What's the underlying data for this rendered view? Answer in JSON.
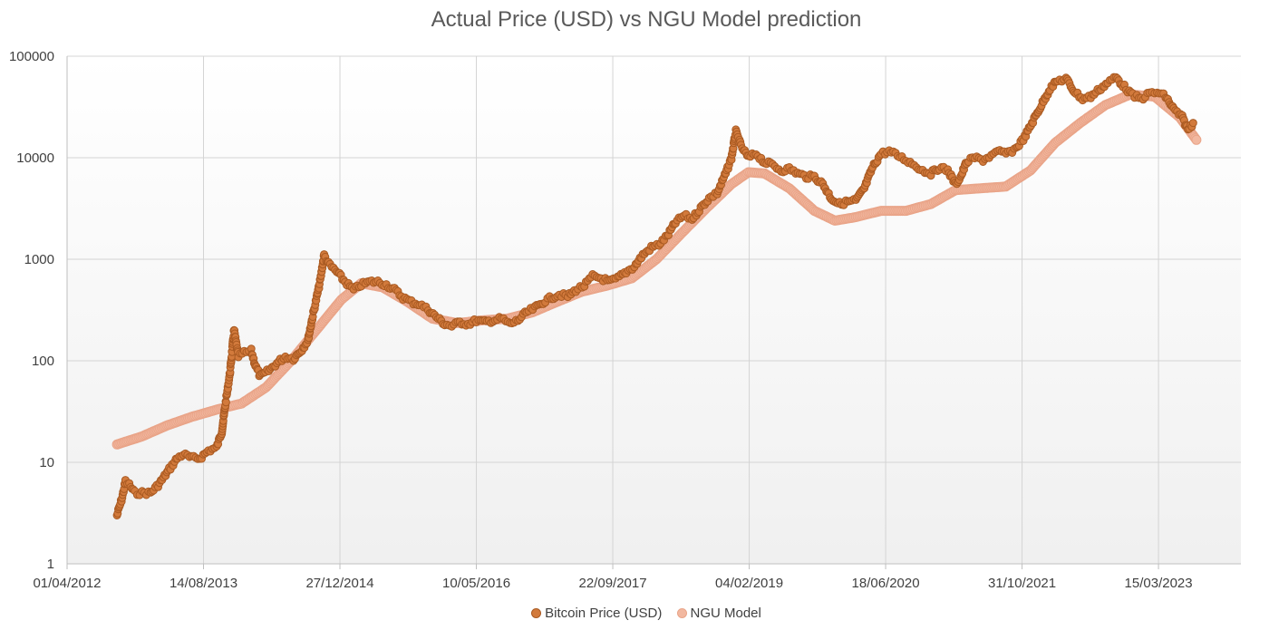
{
  "chart_data": {
    "type": "scatter",
    "title": "Actual Price (USD) vs NGU Model prediction",
    "xlabel": "",
    "ylabel": "",
    "yscale": "log",
    "ylim": [
      1,
      100000
    ],
    "y_ticks": [
      "1",
      "10",
      "100",
      "1000",
      "10000",
      "100000"
    ],
    "xlim": [
      "2012-04-01",
      "2024-01-11"
    ],
    "x_ticks": [
      "01/04/2012",
      "14/08/2013",
      "27/12/2014",
      "10/05/2016",
      "22/09/2017",
      "04/02/2019",
      "18/06/2020",
      "31/10/2021",
      "15/03/2023"
    ],
    "grid": true,
    "legend_position": "bottom",
    "series": [
      {
        "name": "Bitcoin Price (USD)",
        "color": "#d27a3c",
        "edge_color": "#a95a22",
        "points": [
          [
            "2012-10-01",
            3
          ],
          [
            "2012-10-20",
            4.5
          ],
          [
            "2012-11-01",
            6.5
          ],
          [
            "2012-11-15",
            6
          ],
          [
            "2012-12-05",
            5
          ],
          [
            "2013-01-01",
            5
          ],
          [
            "2013-02-01",
            5
          ],
          [
            "2013-03-01",
            6
          ],
          [
            "2013-03-20",
            7
          ],
          [
            "2013-04-10",
            8.5
          ],
          [
            "2013-05-10",
            11
          ],
          [
            "2013-06-01",
            12
          ],
          [
            "2013-07-01",
            11
          ],
          [
            "2013-08-01",
            11
          ],
          [
            "2013-09-01",
            13
          ],
          [
            "2013-10-01",
            14
          ],
          [
            "2013-10-20",
            20
          ],
          [
            "2013-11-01",
            35
          ],
          [
            "2013-11-20",
            80
          ],
          [
            "2013-12-04",
            200
          ],
          [
            "2013-12-20",
            110
          ],
          [
            "2014-01-10",
            120
          ],
          [
            "2014-02-05",
            125
          ],
          [
            "2014-02-20",
            90
          ],
          [
            "2014-03-10",
            70
          ],
          [
            "2014-04-10",
            80
          ],
          [
            "2014-05-10",
            95
          ],
          [
            "2014-06-10",
            110
          ],
          [
            "2014-07-10",
            105
          ],
          [
            "2014-08-10",
            130
          ],
          [
            "2014-09-01",
            160
          ],
          [
            "2014-09-15",
            250
          ],
          [
            "2014-10-01",
            400
          ],
          [
            "2014-10-15",
            600
          ],
          [
            "2014-10-30",
            1100
          ],
          [
            "2014-11-15",
            900
          ],
          [
            "2014-12-15",
            750
          ],
          [
            "2015-01-15",
            600
          ],
          [
            "2015-02-15",
            500
          ],
          [
            "2015-03-15",
            560
          ],
          [
            "2015-04-15",
            600
          ],
          [
            "2015-05-15",
            600
          ],
          [
            "2015-06-15",
            560
          ],
          [
            "2015-07-15",
            500
          ],
          [
            "2015-08-15",
            420
          ],
          [
            "2015-09-15",
            380
          ],
          [
            "2015-10-15",
            360
          ],
          [
            "2015-11-15",
            320
          ],
          [
            "2015-12-15",
            270
          ],
          [
            "2016-01-15",
            230
          ],
          [
            "2016-02-10",
            220
          ],
          [
            "2016-03-10",
            240
          ],
          [
            "2016-04-10",
            230
          ],
          [
            "2016-05-10",
            250
          ],
          [
            "2016-06-10",
            240
          ],
          [
            "2016-07-10",
            250
          ],
          [
            "2016-08-10",
            260
          ],
          [
            "2016-09-10",
            230
          ],
          [
            "2016-10-10",
            250
          ],
          [
            "2016-11-10",
            300
          ],
          [
            "2016-12-10",
            330
          ],
          [
            "2017-01-10",
            380
          ],
          [
            "2017-02-10",
            420
          ],
          [
            "2017-03-10",
            450
          ],
          [
            "2017-04-10",
            430
          ],
          [
            "2017-05-10",
            500
          ],
          [
            "2017-06-10",
            550
          ],
          [
            "2017-07-10",
            680
          ],
          [
            "2017-08-10",
            650
          ],
          [
            "2017-09-10",
            600
          ],
          [
            "2017-10-10",
            650
          ],
          [
            "2017-11-10",
            750
          ],
          [
            "2017-12-10",
            850
          ],
          [
            "2018-01-10",
            1100
          ],
          [
            "2018-02-10",
            1300
          ],
          [
            "2018-03-10",
            1400
          ],
          [
            "2018-04-10",
            1700
          ],
          [
            "2018-05-10",
            2300
          ],
          [
            "2018-06-10",
            2700
          ],
          [
            "2018-07-10",
            2500
          ],
          [
            "2018-08-10",
            3200
          ],
          [
            "2018-09-10",
            4000
          ],
          [
            "2018-10-10",
            4500
          ],
          [
            "2018-11-10",
            7000
          ],
          [
            "2018-12-01",
            10000
          ],
          [
            "2018-12-17",
            18000
          ],
          [
            "2019-01-05",
            13000
          ],
          [
            "2019-02-01",
            10000
          ],
          [
            "2019-03-01",
            11000
          ],
          [
            "2019-04-01",
            9000
          ],
          [
            "2019-05-01",
            8500
          ],
          [
            "2019-06-01",
            7500
          ],
          [
            "2019-07-01",
            7800
          ],
          [
            "2019-08-01",
            7000
          ],
          [
            "2019-09-01",
            6500
          ],
          [
            "2019-10-01",
            6500
          ],
          [
            "2019-11-01",
            5500
          ],
          [
            "2019-12-01",
            4000
          ],
          [
            "2020-01-01",
            3500
          ],
          [
            "2020-02-01",
            3700
          ],
          [
            "2020-03-01",
            3800
          ],
          [
            "2020-04-01",
            5000
          ],
          [
            "2020-05-01",
            8000
          ],
          [
            "2020-06-01",
            11000
          ],
          [
            "2020-07-01",
            11500
          ],
          [
            "2020-08-01",
            10500
          ],
          [
            "2020-09-01",
            9500
          ],
          [
            "2020-10-01",
            8500
          ],
          [
            "2020-11-01",
            7500
          ],
          [
            "2020-12-01",
            7000
          ],
          [
            "2021-01-01",
            8000
          ],
          [
            "2021-02-01",
            7500
          ],
          [
            "2021-03-01",
            5500
          ],
          [
            "2021-03-20",
            6500
          ],
          [
            "2021-04-10",
            9000
          ],
          [
            "2021-05-10",
            10000
          ],
          [
            "2021-06-10",
            9500
          ],
          [
            "2021-07-10",
            10500
          ],
          [
            "2021-08-10",
            11500
          ],
          [
            "2021-09-10",
            11000
          ],
          [
            "2021-10-10",
            12500
          ],
          [
            "2021-11-10",
            16000
          ],
          [
            "2021-12-10",
            23000
          ],
          [
            "2022-01-10",
            33000
          ],
          [
            "2022-02-10",
            48000
          ],
          [
            "2022-03-10",
            57000
          ],
          [
            "2022-04-10",
            60000
          ],
          [
            "2022-05-10",
            45000
          ],
          [
            "2022-06-10",
            38000
          ],
          [
            "2022-07-10",
            40000
          ],
          [
            "2022-08-10",
            47000
          ],
          [
            "2022-09-10",
            55000
          ],
          [
            "2022-10-10",
            62000
          ],
          [
            "2022-11-10",
            50000
          ],
          [
            "2022-12-10",
            41000
          ],
          [
            "2023-01-10",
            38000
          ],
          [
            "2023-02-10",
            43000
          ],
          [
            "2023-03-10",
            44000
          ],
          [
            "2023-04-10",
            40000
          ],
          [
            "2023-05-10",
            30000
          ],
          [
            "2023-06-10",
            25000
          ],
          [
            "2023-07-01",
            19000
          ],
          [
            "2023-07-20",
            22000
          ]
        ]
      },
      {
        "name": "NGU Model",
        "color": "#f2b8a0",
        "edge_color": "#e9a488",
        "points": [
          [
            "2012-10-01",
            15
          ],
          [
            "2013-01-01",
            18
          ],
          [
            "2013-04-01",
            23
          ],
          [
            "2013-07-01",
            28
          ],
          [
            "2013-10-01",
            33
          ],
          [
            "2014-01-01",
            38
          ],
          [
            "2014-04-01",
            55
          ],
          [
            "2014-07-01",
            100
          ],
          [
            "2014-10-01",
            200
          ],
          [
            "2015-01-01",
            400
          ],
          [
            "2015-03-15",
            580
          ],
          [
            "2015-06-01",
            530
          ],
          [
            "2015-09-01",
            380
          ],
          [
            "2015-12-01",
            260
          ],
          [
            "2016-03-01",
            235
          ],
          [
            "2016-06-01",
            250
          ],
          [
            "2016-09-01",
            260
          ],
          [
            "2016-12-01",
            300
          ],
          [
            "2017-03-01",
            380
          ],
          [
            "2017-06-01",
            480
          ],
          [
            "2017-09-01",
            550
          ],
          [
            "2017-12-01",
            650
          ],
          [
            "2018-03-01",
            1000
          ],
          [
            "2018-06-01",
            1800
          ],
          [
            "2018-09-01",
            3200
          ],
          [
            "2018-12-01",
            5500
          ],
          [
            "2019-02-01",
            7200
          ],
          [
            "2019-04-01",
            7000
          ],
          [
            "2019-07-01",
            5000
          ],
          [
            "2019-10-01",
            3000
          ],
          [
            "2019-12-15",
            2400
          ],
          [
            "2020-03-01",
            2600
          ],
          [
            "2020-06-01",
            3000
          ],
          [
            "2020-09-01",
            3000
          ],
          [
            "2020-12-01",
            3500
          ],
          [
            "2021-03-01",
            4800
          ],
          [
            "2021-06-01",
            5000
          ],
          [
            "2021-09-01",
            5200
          ],
          [
            "2021-12-01",
            7500
          ],
          [
            "2022-03-01",
            14000
          ],
          [
            "2022-06-01",
            22000
          ],
          [
            "2022-09-01",
            33000
          ],
          [
            "2022-12-01",
            42000
          ],
          [
            "2023-03-01",
            40000
          ],
          [
            "2023-06-01",
            25000
          ],
          [
            "2023-08-01",
            15000
          ]
        ]
      }
    ]
  }
}
